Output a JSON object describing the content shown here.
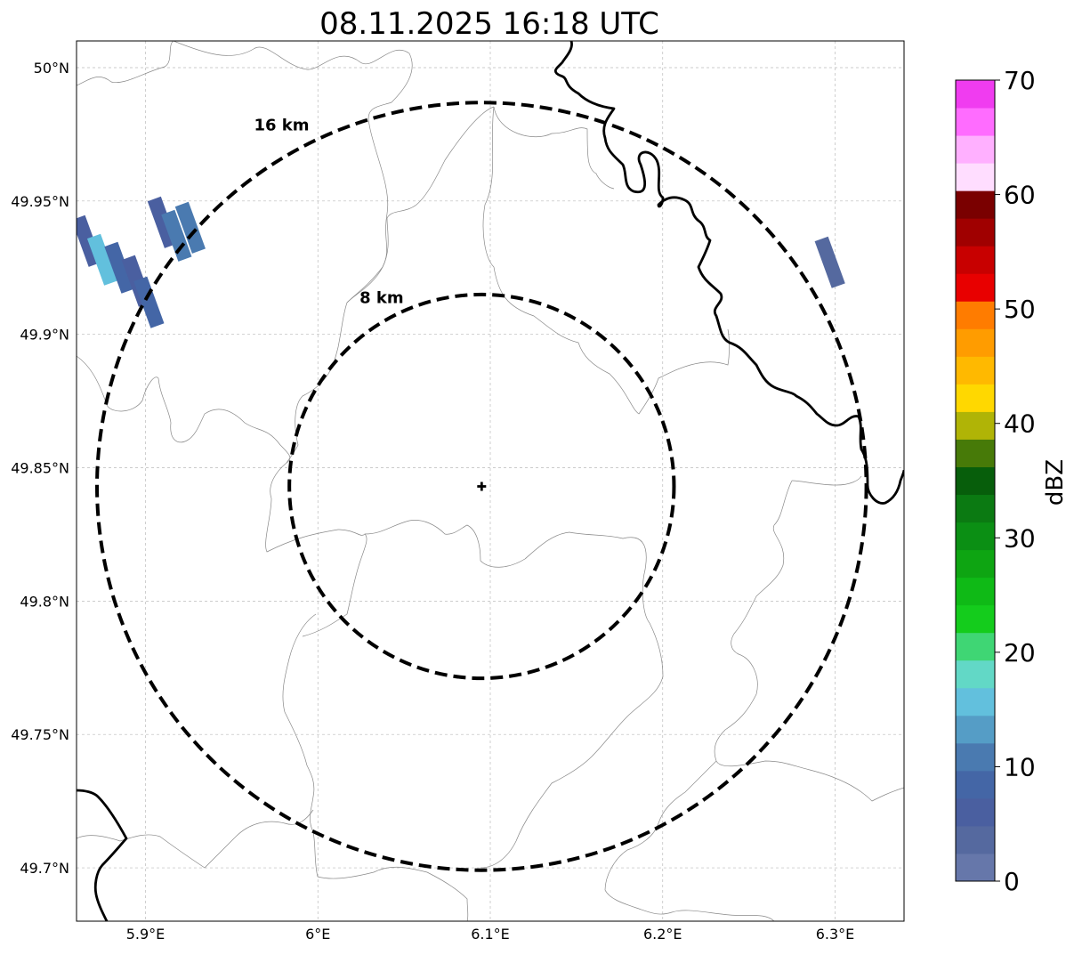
{
  "title": "08.11.2025 16:18 UTC",
  "map": {
    "lon_ticks": [
      {
        "value": 5.9,
        "label": "5.9°E"
      },
      {
        "value": 6.0,
        "label": "6°E"
      },
      {
        "value": 6.1,
        "label": "6.1°E"
      },
      {
        "value": 6.2,
        "label": "6.2°E"
      },
      {
        "value": 6.3,
        "label": "6.3°E"
      }
    ],
    "lat_ticks": [
      {
        "value": 50.0,
        "label": "50°N"
      },
      {
        "value": 49.95,
        "label": "49.95°N"
      },
      {
        "value": 49.9,
        "label": "49.9°N"
      },
      {
        "value": 49.85,
        "label": "49.85°N"
      },
      {
        "value": 49.8,
        "label": "49.8°N"
      },
      {
        "value": 49.75,
        "label": "49.75°N"
      },
      {
        "value": 49.7,
        "label": "49.7°N"
      }
    ],
    "extent": {
      "lon": [
        5.86,
        6.34
      ],
      "lat": [
        49.68,
        50.01
      ]
    },
    "gridlines": true,
    "radar_site": {
      "lon": 6.095,
      "lat": 49.843
    },
    "range_rings": [
      {
        "label": "8 km",
        "radius_km": 8
      },
      {
        "label": "16 km",
        "radius_km": 16
      }
    ]
  },
  "colorbar": {
    "label": "dBZ",
    "min": 0,
    "max": 70,
    "ticks": [
      "0",
      "10",
      "20",
      "30",
      "40",
      "50",
      "60",
      "70"
    ],
    "colors": [
      "#6677aa",
      "#55699f",
      "#4a5fa0",
      "#4466a6",
      "#4a7ab0",
      "#559dc6",
      "#62c0dd",
      "#62d8c6",
      "#3fd674",
      "#14cc1c",
      "#0fba16",
      "#0ea512",
      "#0b8f14",
      "#0b7a12",
      "#075e0b",
      "#477a08",
      "#b0b406",
      "#ffd800",
      "#ffb900",
      "#ff9c00",
      "#ff7c00",
      "#e80000",
      "#c80000",
      "#a00000",
      "#7a0000",
      "#ffddff",
      "#ffb0ff",
      "#ff6cff",
      "#f03cf0"
    ]
  },
  "echoes": [
    {
      "lon": 5.866,
      "lat": 49.935,
      "level": 6
    },
    {
      "lon": 5.875,
      "lat": 49.928,
      "level": 14
    },
    {
      "lon": 5.885,
      "lat": 49.925,
      "level": 8
    },
    {
      "lon": 5.895,
      "lat": 49.92,
      "level": 6
    },
    {
      "lon": 5.902,
      "lat": 49.912,
      "level": 7
    },
    {
      "lon": 5.91,
      "lat": 49.942,
      "level": 6
    },
    {
      "lon": 5.918,
      "lat": 49.937,
      "level": 11
    },
    {
      "lon": 5.926,
      "lat": 49.94,
      "level": 10
    },
    {
      "lon": 6.297,
      "lat": 49.927,
      "level": 3
    }
  ]
}
